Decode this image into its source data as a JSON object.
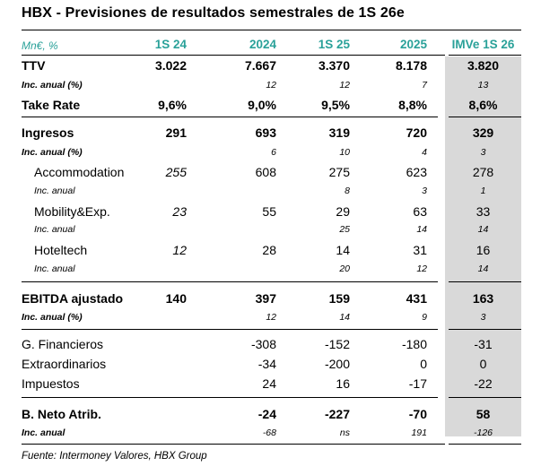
{
  "title": "HBX - Previsiones de resultados semestrales de 1S 26e",
  "columns": [
    "Mn€, %",
    "1S 24",
    "2024",
    "1S 25",
    "2025",
    "IMVe 1S 26"
  ],
  "rows": [
    {
      "label": "TTV",
      "v": [
        "3.022",
        "7.667",
        "3.370",
        "8.178",
        "3.820"
      ]
    },
    {
      "label": "Inc. anual (%)",
      "v": [
        "",
        "12",
        "12",
        "7",
        "13"
      ]
    },
    {
      "label": "Take Rate",
      "v": [
        "9,6%",
        "9,0%",
        "9,5%",
        "8,8%",
        "8,6%"
      ]
    },
    {
      "label": "Ingresos",
      "v": [
        "291",
        "693",
        "319",
        "720",
        "329"
      ]
    },
    {
      "label": "Inc. anual (%)",
      "v": [
        "",
        "6",
        "10",
        "4",
        "3"
      ]
    },
    {
      "label": "Accommodation",
      "v": [
        "255",
        "608",
        "275",
        "623",
        "278"
      ]
    },
    {
      "label": "Inc. anual",
      "v": [
        "",
        "",
        "8",
        "3",
        "1"
      ]
    },
    {
      "label": "Mobility&Exp.",
      "v": [
        "23",
        "55",
        "29",
        "63",
        "33"
      ]
    },
    {
      "label": "Inc. anual",
      "v": [
        "",
        "",
        "25",
        "14",
        "14"
      ]
    },
    {
      "label": "Hoteltech",
      "v": [
        "12",
        "28",
        "14",
        "31",
        "16"
      ]
    },
    {
      "label": "Inc. anual",
      "v": [
        "",
        "",
        "20",
        "12",
        "14"
      ]
    },
    {
      "label": "EBITDA ajustado",
      "v": [
        "140",
        "397",
        "159",
        "431",
        "163"
      ]
    },
    {
      "label": "Inc. anual (%)",
      "v": [
        "",
        "12",
        "14",
        "9",
        "3"
      ]
    },
    {
      "label": "G. Financieros",
      "v": [
        "",
        "-308",
        "-152",
        "-180",
        "-31"
      ]
    },
    {
      "label": "Extraordinarios",
      "v": [
        "",
        "-34",
        "-200",
        "0",
        "0"
      ]
    },
    {
      "label": "Impuestos",
      "v": [
        "",
        "24",
        "16",
        "-17",
        "-22"
      ]
    },
    {
      "label": "B. Neto Atrib.",
      "v": [
        "",
        "-24",
        "-227",
        "-70",
        "58"
      ]
    },
    {
      "label": "Inc. anual",
      "v": [
        "",
        "-68",
        "ns",
        "191",
        "-126"
      ]
    }
  ],
  "source": "Fuente: Intermoney Valores, HBX Group"
}
